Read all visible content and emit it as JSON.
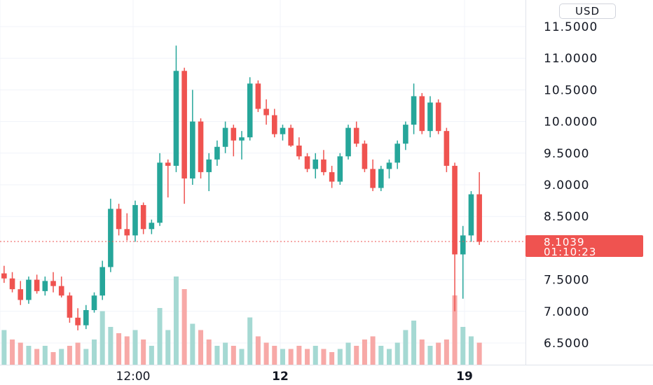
{
  "currency": "USD",
  "current_price": "8.1039",
  "countdown": "01:10:23",
  "colors": {
    "up": "#26a69a",
    "down": "#ef5350",
    "up_volume": "#a5d9d3",
    "down_volume": "#f7a9a7",
    "grid": "#f0f3fa"
  },
  "chart_data": {
    "type": "candlestick",
    "y_ticks": [
      "11.5000",
      "11.0000",
      "10.5000",
      "10.0000",
      "9.5000",
      "9.0000",
      "8.5000",
      "7.5000",
      "7.0000",
      "6.5000"
    ],
    "x_ticks": [
      {
        "label": "12:00",
        "bold": false
      },
      {
        "label": "12",
        "bold": true
      },
      {
        "label": "19",
        "bold": true
      }
    ],
    "ylim": [
      6.2,
      11.9
    ],
    "last_price": 8.1039,
    "candles": [
      [
        7.6,
        7.72,
        7.45,
        7.52
      ],
      [
        7.52,
        7.62,
        7.3,
        7.35
      ],
      [
        7.35,
        7.48,
        7.1,
        7.18
      ],
      [
        7.18,
        7.55,
        7.12,
        7.5
      ],
      [
        7.5,
        7.58,
        7.28,
        7.32
      ],
      [
        7.32,
        7.55,
        7.25,
        7.48
      ],
      [
        7.48,
        7.62,
        7.3,
        7.4
      ],
      [
        7.4,
        7.55,
        7.22,
        7.25
      ],
      [
        7.25,
        7.3,
        6.82,
        6.9
      ],
      [
        6.9,
        7.05,
        6.7,
        6.78
      ],
      [
        6.78,
        7.1,
        6.72,
        7.02
      ],
      [
        7.02,
        7.3,
        6.98,
        7.25
      ],
      [
        7.25,
        7.8,
        7.18,
        7.7
      ],
      [
        7.7,
        8.78,
        7.62,
        8.62
      ],
      [
        8.62,
        8.7,
        8.2,
        8.3
      ],
      [
        8.3,
        8.55,
        8.12,
        8.2
      ],
      [
        8.2,
        8.75,
        8.1,
        8.68
      ],
      [
        8.68,
        8.72,
        8.22,
        8.3
      ],
      [
        8.3,
        8.45,
        8.22,
        8.4
      ],
      [
        8.4,
        9.5,
        8.35,
        9.35
      ],
      [
        9.35,
        9.4,
        8.8,
        9.3
      ],
      [
        9.3,
        11.2,
        9.2,
        10.8
      ],
      [
        10.8,
        10.85,
        8.7,
        9.1
      ],
      [
        9.1,
        10.5,
        9.0,
        10.0
      ],
      [
        10.0,
        10.05,
        9.1,
        9.2
      ],
      [
        9.2,
        9.5,
        8.9,
        9.4
      ],
      [
        9.4,
        9.7,
        9.3,
        9.6
      ],
      [
        9.6,
        10.0,
        9.5,
        9.9
      ],
      [
        9.9,
        9.95,
        9.45,
        9.7
      ],
      [
        9.7,
        9.85,
        9.4,
        9.75
      ],
      [
        9.75,
        10.7,
        9.7,
        10.6
      ],
      [
        10.6,
        10.65,
        10.15,
        10.2
      ],
      [
        10.2,
        10.35,
        9.95,
        10.1
      ],
      [
        10.1,
        10.2,
        9.75,
        9.8
      ],
      [
        9.8,
        9.95,
        9.7,
        9.9
      ],
      [
        9.9,
        9.95,
        9.6,
        9.62
      ],
      [
        9.62,
        9.75,
        9.4,
        9.45
      ],
      [
        9.45,
        9.5,
        9.2,
        9.25
      ],
      [
        9.25,
        9.5,
        9.1,
        9.4
      ],
      [
        9.4,
        9.55,
        9.15,
        9.2
      ],
      [
        9.2,
        9.3,
        8.95,
        9.05
      ],
      [
        9.05,
        9.5,
        9.0,
        9.45
      ],
      [
        9.45,
        9.95,
        9.4,
        9.9
      ],
      [
        9.9,
        10.0,
        9.6,
        9.65
      ],
      [
        9.65,
        9.7,
        9.2,
        9.25
      ],
      [
        9.25,
        9.4,
        8.9,
        8.95
      ],
      [
        8.95,
        9.3,
        8.9,
        9.25
      ],
      [
        9.25,
        9.4,
        9.1,
        9.35
      ],
      [
        9.35,
        9.7,
        9.25,
        9.65
      ],
      [
        9.65,
        10.0,
        9.55,
        9.95
      ],
      [
        9.95,
        10.6,
        9.8,
        10.4
      ],
      [
        10.4,
        10.45,
        9.8,
        9.85
      ],
      [
        9.85,
        10.4,
        9.75,
        10.3
      ],
      [
        10.3,
        10.35,
        9.8,
        9.85
      ],
      [
        9.85,
        9.9,
        9.2,
        9.3
      ],
      [
        9.3,
        9.35,
        7.0,
        7.9
      ],
      [
        7.9,
        8.35,
        7.2,
        8.2
      ],
      [
        8.2,
        8.9,
        8.1,
        8.85
      ],
      [
        8.85,
        9.2,
        8.05,
        8.1
      ]
    ],
    "volumes": [
      [
        0.55,
        "up"
      ],
      [
        0.4,
        "down"
      ],
      [
        0.35,
        "down"
      ],
      [
        0.3,
        "up"
      ],
      [
        0.25,
        "down"
      ],
      [
        0.3,
        "up"
      ],
      [
        0.2,
        "down"
      ],
      [
        0.25,
        "up"
      ],
      [
        0.3,
        "down"
      ],
      [
        0.35,
        "down"
      ],
      [
        0.25,
        "up"
      ],
      [
        0.4,
        "up"
      ],
      [
        0.85,
        "up"
      ],
      [
        0.6,
        "up"
      ],
      [
        0.5,
        "down"
      ],
      [
        0.45,
        "down"
      ],
      [
        0.55,
        "up"
      ],
      [
        0.4,
        "down"
      ],
      [
        0.3,
        "up"
      ],
      [
        0.9,
        "up"
      ],
      [
        0.55,
        "up"
      ],
      [
        1.4,
        "up"
      ],
      [
        1.2,
        "down"
      ],
      [
        0.65,
        "up"
      ],
      [
        0.55,
        "down"
      ],
      [
        0.4,
        "down"
      ],
      [
        0.3,
        "up"
      ],
      [
        0.35,
        "up"
      ],
      [
        0.3,
        "down"
      ],
      [
        0.25,
        "up"
      ],
      [
        0.75,
        "up"
      ],
      [
        0.45,
        "down"
      ],
      [
        0.35,
        "down"
      ],
      [
        0.3,
        "down"
      ],
      [
        0.25,
        "up"
      ],
      [
        0.25,
        "down"
      ],
      [
        0.3,
        "down"
      ],
      [
        0.25,
        "down"
      ],
      [
        0.3,
        "up"
      ],
      [
        0.25,
        "down"
      ],
      [
        0.2,
        "down"
      ],
      [
        0.25,
        "up"
      ],
      [
        0.35,
        "up"
      ],
      [
        0.3,
        "down"
      ],
      [
        0.4,
        "down"
      ],
      [
        0.45,
        "down"
      ],
      [
        0.3,
        "up"
      ],
      [
        0.25,
        "up"
      ],
      [
        0.35,
        "up"
      ],
      [
        0.55,
        "up"
      ],
      [
        0.7,
        "up"
      ],
      [
        0.4,
        "down"
      ],
      [
        0.3,
        "up"
      ],
      [
        0.35,
        "down"
      ],
      [
        0.4,
        "down"
      ],
      [
        1.1,
        "down"
      ],
      [
        0.6,
        "up"
      ],
      [
        0.45,
        "up"
      ],
      [
        0.35,
        "down"
      ]
    ]
  }
}
